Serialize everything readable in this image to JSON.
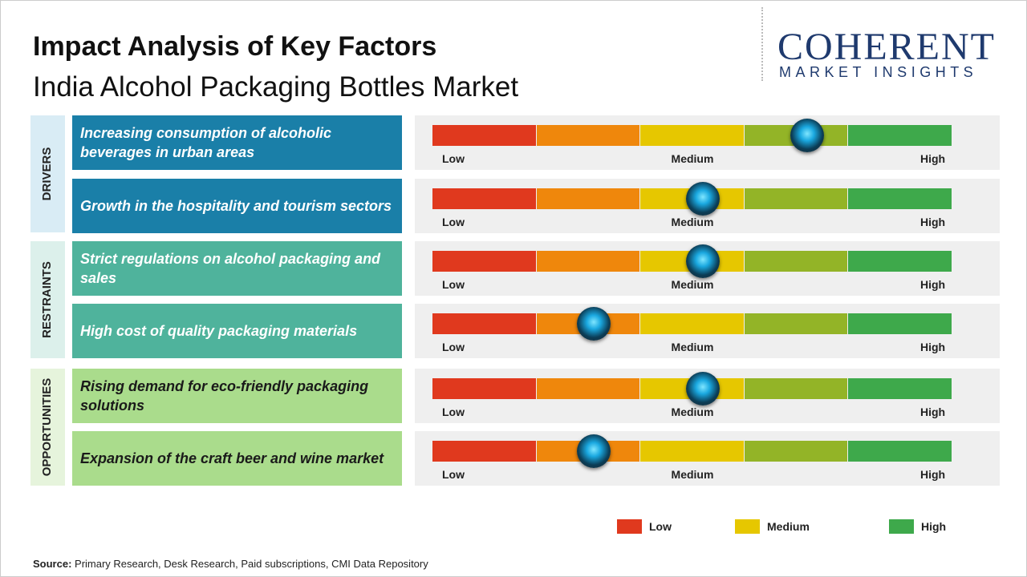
{
  "header": {
    "title": "Impact Analysis of Key Factors",
    "subtitle": "India Alcohol Packaging Bottles Market"
  },
  "logo": {
    "name": "COHERENT",
    "tagline": "MARKET INSIGHTS"
  },
  "scale": {
    "low": "Low",
    "medium": "Medium",
    "high": "High"
  },
  "groups": [
    {
      "label": "DRIVERS",
      "color": "#1a7fa8",
      "bg": "#d9ecf5",
      "text_color": "#ffffff",
      "factors": [
        {
          "text": "Increasing consumption of alcoholic beverages in urban areas",
          "impact": 0.72
        },
        {
          "text": "Growth in the hospitality and tourism sectors",
          "impact": 0.52
        }
      ]
    },
    {
      "label": "RESTRAINTS",
      "color": "#4fb39c",
      "bg": "#dcf0eb",
      "text_color": "#ffffff",
      "factors": [
        {
          "text": "Strict regulations on alcohol packaging and sales",
          "impact": 0.52
        },
        {
          "text": "High cost of quality packaging materials",
          "impact": 0.31
        }
      ]
    },
    {
      "label": "OPPORTUNITIES",
      "color": "#aadc8c",
      "bg": "#e6f4dc",
      "text_color": "#1a1a1a",
      "factors": [
        {
          "text": "Rising demand for eco-friendly packaging solutions",
          "impact": 0.52
        },
        {
          "text": "Expansion of the craft beer and wine market",
          "impact": 0.31
        }
      ]
    }
  ],
  "segments": [
    "#e0391e",
    "#ef870c",
    "#e6c700",
    "#93b427",
    "#3ea94b"
  ],
  "legend": [
    {
      "label": "Low",
      "color": "#e0391e"
    },
    {
      "label": "Medium",
      "color": "#e6c700"
    },
    {
      "label": "High",
      "color": "#3ea94b"
    }
  ],
  "source": {
    "label": "Source:",
    "text": "Primary Research, Desk Research, Paid subscriptions, CMI Data Repository"
  }
}
